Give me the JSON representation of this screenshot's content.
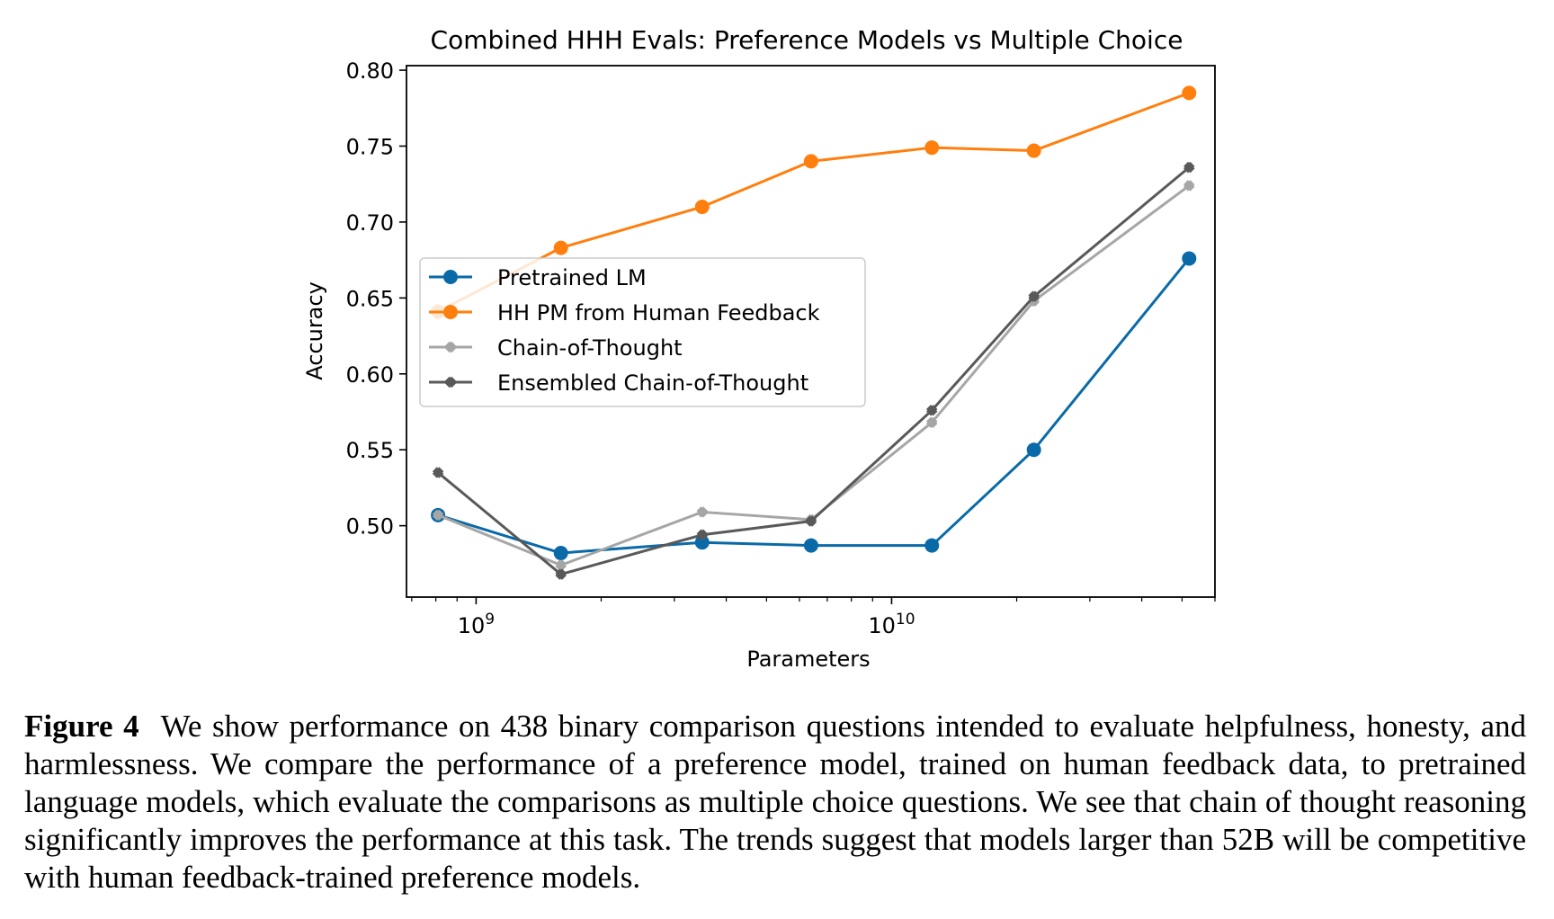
{
  "chart_data": {
    "type": "line",
    "title": "Combined HHH Evals: Preference Models vs Multiple Choice",
    "xlabel": "Parameters",
    "ylabel": "Accuracy",
    "xscale": "log",
    "xlim": [
      680000000,
      60000000000
    ],
    "ylim": [
      0.453,
      0.803
    ],
    "yticks": [
      0.5,
      0.55,
      0.6,
      0.65,
      0.7,
      0.75,
      0.8
    ],
    "ytick_labels": [
      "0.50",
      "0.55",
      "0.60",
      "0.65",
      "0.70",
      "0.75",
      "0.80"
    ],
    "xticks": [
      1000000000,
      10000000000
    ],
    "xtick_labels": [
      [
        "10",
        "9"
      ],
      [
        "10",
        "10"
      ]
    ],
    "x": [
      810000000,
      1600000000,
      3500000000,
      6400000000,
      12500000000,
      22000000000,
      52000000000
    ],
    "grid": false,
    "legend_position": "center-left",
    "series": [
      {
        "name": "Pretrained LM",
        "color": "#0a6aa8",
        "marker": "circle",
        "values": [
          0.507,
          0.482,
          0.489,
          0.487,
          0.487,
          0.55,
          0.676
        ]
      },
      {
        "name": "HH PM from Human Feedback",
        "color": "#ff7f0e",
        "marker": "circle",
        "values": [
          0.641,
          0.683,
          0.71,
          0.74,
          0.749,
          0.747,
          0.785
        ]
      },
      {
        "name": "Chain-of-Thought",
        "color": "#a6a6a6",
        "marker": "x",
        "values": [
          0.507,
          0.474,
          0.509,
          0.504,
          0.568,
          0.648,
          0.724
        ]
      },
      {
        "name": "Ensembled Chain-of-Thought",
        "color": "#595959",
        "marker": "x",
        "values": [
          0.535,
          0.468,
          0.494,
          0.503,
          0.576,
          0.651,
          0.736
        ]
      }
    ]
  },
  "caption": {
    "label": "Figure 4",
    "text": "We show performance on 438 binary comparison questions intended to evaluate helpfulness, honesty, and harmlessness. We compare the performance of a preference model, trained on human feedback data, to pretrained language models, which evaluate the comparisons as multiple choice questions. We see that chain of thought reasoning significantly improves the performance at this task. The trends suggest that models larger than 52B will be competitive with human feedback-trained preference models."
  }
}
